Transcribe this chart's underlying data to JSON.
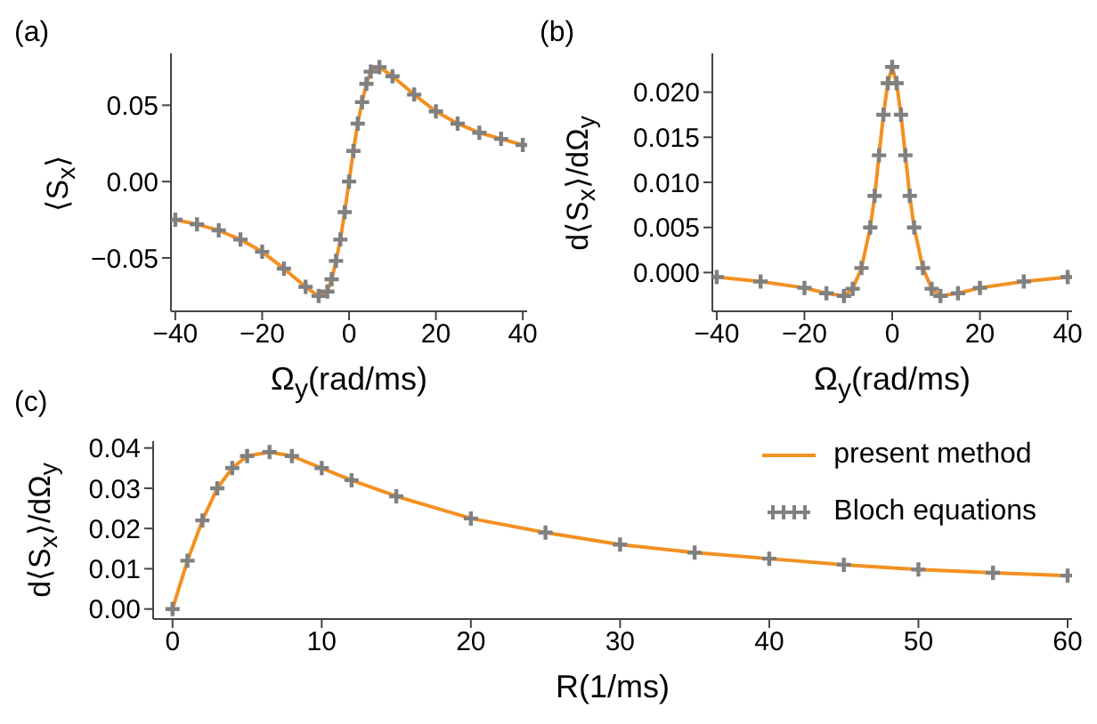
{
  "chart_data": [
    {
      "type": "line",
      "title": "(a)",
      "xlabel": "Ω$_{y}$(rad/ms)",
      "ylabel": "⟨S$_{x}$⟩",
      "xlim": [
        -41,
        41
      ],
      "xticks": [
        -40,
        -20,
        0,
        20,
        40
      ],
      "ylim": [
        -0.085,
        0.084
      ],
      "yticks": [
        {
          "value": -0.05,
          "label": "−0.05"
        },
        {
          "value": 0,
          "label": "0.00"
        },
        0.05
      ],
      "grid": false,
      "legend": false,
      "x": [
        -40,
        -35,
        -30,
        -25,
        -20,
        -15,
        -10,
        -7,
        -5,
        -4,
        -3,
        -2,
        -1,
        0,
        1,
        2,
        3,
        4,
        5,
        7,
        10,
        15,
        20,
        25,
        30,
        35,
        40
      ],
      "series": [
        {
          "type": "line",
          "color": "#f39020",
          "values": [
            -0.025,
            -0.028,
            -0.032,
            -0.038,
            -0.046,
            -0.057,
            -0.069,
            -0.075,
            -0.072,
            -0.064,
            -0.052,
            -0.038,
            -0.02,
            0,
            0.02,
            0.038,
            0.052,
            0.064,
            0.072,
            0.075,
            0.069,
            0.057,
            0.046,
            0.038,
            0.032,
            0.028,
            0.024
          ]
        },
        {
          "type": "scatter",
          "color": "#808080",
          "marker": "cross",
          "values": [
            -0.025,
            -0.028,
            -0.032,
            -0.038,
            -0.046,
            -0.057,
            -0.069,
            -0.075,
            -0.072,
            -0.064,
            -0.052,
            -0.038,
            -0.02,
            0,
            0.02,
            0.038,
            0.052,
            0.064,
            0.072,
            0.075,
            0.069,
            0.057,
            0.046,
            0.038,
            0.032,
            0.028,
            0.024
          ]
        }
      ]
    },
    {
      "type": "line",
      "title": "(b)",
      "xlabel": "Ω$_{y}$(rad/ms)",
      "ylabel": "d⟨S$_{x}$⟩/dΩ$_{y}$",
      "xlim": [
        -41,
        41
      ],
      "xticks": [
        -40,
        -20,
        0,
        20,
        40
      ],
      "ylim": [
        -0.0043,
        0.0243
      ],
      "yticks": [
        {
          "value": 0,
          "label": "0.000"
        },
        {
          "value": 0.005,
          "label": "0.005"
        },
        {
          "value": 0.01,
          "label": "0.010"
        },
        {
          "value": 0.015,
          "label": "0.015"
        },
        {
          "value": 0.02,
          "label": "0.020"
        }
      ],
      "grid": false,
      "legend": false,
      "x": [
        -40,
        -30,
        -20,
        -15,
        -11,
        -9,
        -7,
        -5,
        -4,
        -3,
        -2,
        -1,
        0,
        1,
        2,
        3,
        4,
        5,
        7,
        9,
        11,
        15,
        20,
        30,
        40
      ],
      "series": [
        {
          "type": "line",
          "color": "#f39020",
          "values": [
            -0.0005,
            -0.001,
            -0.0017,
            -0.0023,
            -0.0026,
            -0.0018,
            0.0005,
            0.005,
            0.0085,
            0.013,
            0.0175,
            0.021,
            0.0228,
            0.021,
            0.0175,
            0.013,
            0.0085,
            0.005,
            0.0005,
            -0.0018,
            -0.0026,
            -0.0023,
            -0.0017,
            -0.001,
            -0.0005
          ]
        },
        {
          "type": "scatter",
          "color": "#808080",
          "marker": "cross",
          "values": [
            -0.0005,
            -0.001,
            -0.0017,
            -0.0023,
            -0.0026,
            -0.0018,
            0.0005,
            0.005,
            0.0085,
            0.013,
            0.0175,
            0.021,
            0.0228,
            0.021,
            0.0175,
            0.013,
            0.0085,
            0.005,
            0.0005,
            -0.0018,
            -0.0026,
            -0.0023,
            -0.0017,
            -0.001,
            -0.0005
          ]
        }
      ]
    },
    {
      "type": "line",
      "title": "(c)",
      "xlabel": "R(1/ms)",
      "ylabel": "d⟨S$_{x}$⟩/dΩ$_{y}$",
      "xlim": [
        -1.3,
        60.3
      ],
      "xticks": [
        0,
        10,
        20,
        30,
        40,
        50,
        60
      ],
      "ylim": [
        -0.0025,
        0.0417
      ],
      "yticks": [
        {
          "value": 0,
          "label": "0.00"
        },
        {
          "value": 0.01,
          "label": "0.01"
        },
        {
          "value": 0.02,
          "label": "0.02"
        },
        {
          "value": 0.03,
          "label": "0.03"
        },
        {
          "value": 0.04,
          "label": "0.04"
        }
      ],
      "grid": false,
      "legend": "top right",
      "x": [
        0,
        1,
        2,
        3,
        4,
        5,
        6.5,
        8,
        10,
        12,
        15,
        20,
        25,
        30,
        35,
        40,
        45,
        50,
        55,
        60
      ],
      "series": [
        {
          "type": "line",
          "name": "present method",
          "color": "#f39020",
          "values": [
            0,
            0.012,
            0.022,
            0.03,
            0.035,
            0.038,
            0.039,
            0.038,
            0.035,
            0.032,
            0.028,
            0.0225,
            0.019,
            0.016,
            0.014,
            0.0125,
            0.011,
            0.0098,
            0.009,
            0.0083
          ]
        },
        {
          "type": "scatter",
          "name": "Bloch equations",
          "color": "#808080",
          "marker": "cross",
          "values": [
            0,
            0.012,
            0.022,
            0.03,
            0.035,
            0.038,
            0.039,
            0.038,
            0.035,
            0.032,
            0.028,
            0.0225,
            0.019,
            0.016,
            0.014,
            0.0125,
            0.011,
            0.0098,
            0.009,
            0.0083
          ]
        }
      ]
    }
  ]
}
